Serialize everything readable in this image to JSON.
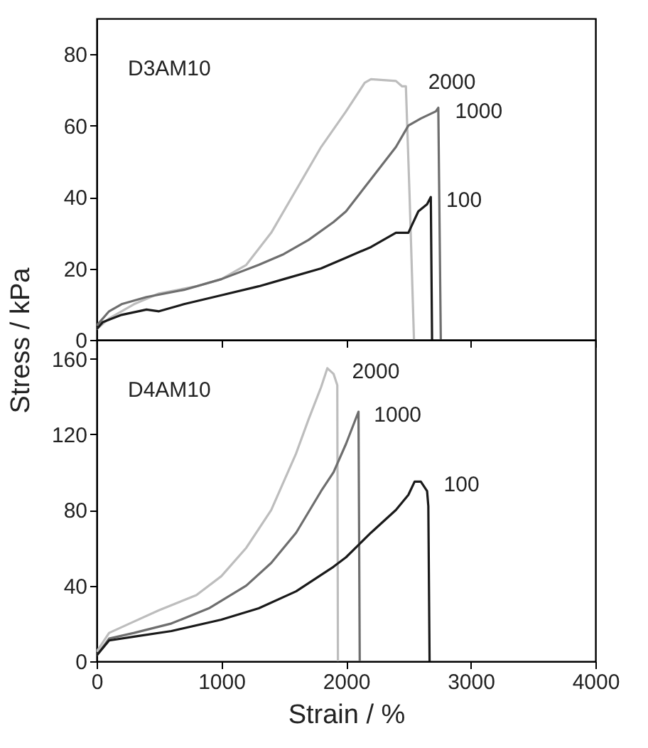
{
  "chart_data": [
    {
      "type": "line",
      "ylabel": "Stress / kPa",
      "annotations": [
        "D3AM10"
      ],
      "xlim": [
        0,
        4000
      ],
      "xticks": [
        0,
        1000,
        2000,
        3000,
        4000
      ],
      "ylim": [
        0,
        90
      ],
      "yticks": [
        0,
        20,
        40,
        60,
        80
      ],
      "tick_labels": "y",
      "grid": false,
      "legend": false,
      "series": [
        {
          "name": "2000",
          "color": "#bdbdbd",
          "x": [
            0,
            100,
            300,
            500,
            800,
            1000,
            1200,
            1400,
            1600,
            1800,
            2000,
            2150,
            2200,
            2400,
            2450,
            2480,
            2510,
            2545
          ],
          "values": [
            3,
            6,
            10,
            13,
            15,
            17,
            21,
            30,
            42,
            54,
            64,
            72,
            73,
            72.5,
            71,
            71,
            40,
            0
          ]
        },
        {
          "name": "1000",
          "color": "#6e6e6e",
          "x": [
            0,
            100,
            200,
            400,
            700,
            1000,
            1300,
            1500,
            1700,
            1900,
            2000,
            2200,
            2400,
            2500,
            2600,
            2720,
            2740,
            2760
          ],
          "values": [
            4,
            8,
            10,
            12,
            14,
            17,
            21,
            24,
            28,
            33,
            36,
            45,
            54,
            60,
            62,
            64,
            65,
            0
          ]
        },
        {
          "name": "100",
          "color": "#1a1a1a",
          "x": [
            0,
            50,
            200,
            400,
            500,
            700,
            1000,
            1300,
            1500,
            1800,
            2000,
            2200,
            2300,
            2400,
            2500,
            2580,
            2650,
            2680,
            2690
          ],
          "values": [
            3,
            5,
            7,
            8.5,
            8,
            10,
            12.5,
            15,
            17,
            20,
            23,
            26,
            28,
            30,
            30,
            36,
            38,
            40,
            0
          ]
        }
      ]
    },
    {
      "type": "line",
      "xlabel": "Strain / %",
      "annotations": [
        "D4AM10"
      ],
      "xlim": [
        0,
        4000
      ],
      "xticks": [
        0,
        1000,
        2000,
        3000,
        4000
      ],
      "ylim": [
        0,
        170
      ],
      "yticks": [
        0,
        40,
        80,
        120,
        160
      ],
      "grid": false,
      "legend": false,
      "series": [
        {
          "name": "2000",
          "color": "#bdbdbd",
          "x": [
            0,
            100,
            300,
            500,
            800,
            1000,
            1200,
            1400,
            1600,
            1700,
            1800,
            1850,
            1900,
            1930,
            1935
          ],
          "values": [
            5,
            15,
            21,
            27,
            35,
            45,
            60,
            80,
            110,
            128,
            145,
            155,
            152,
            146,
            0
          ]
        },
        {
          "name": "1000",
          "color": "#6e6e6e",
          "x": [
            0,
            100,
            300,
            600,
            900,
            1200,
            1400,
            1600,
            1800,
            1900,
            2000,
            2100,
            2110
          ],
          "values": [
            3,
            12,
            15,
            20,
            28,
            40,
            52,
            68,
            90,
            100,
            115,
            132,
            0
          ]
        },
        {
          "name": "100",
          "color": "#1a1a1a",
          "x": [
            0,
            100,
            300,
            600,
            1000,
            1300,
            1600,
            1900,
            2000,
            2200,
            2400,
            2500,
            2550,
            2600,
            2650,
            2660,
            2670
          ],
          "values": [
            3,
            11,
            13,
            16,
            22,
            28,
            37,
            50,
            55,
            68,
            80,
            88,
            95,
            95,
            90,
            82,
            0
          ]
        }
      ]
    }
  ]
}
